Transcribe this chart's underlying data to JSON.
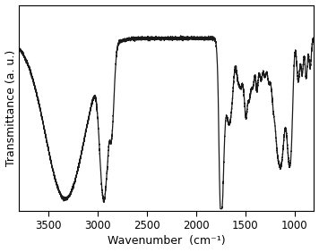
{
  "title": "",
  "xlabel": "Wavenumber  (cm⁻¹)",
  "ylabel": "Transmittance (a. u.)",
  "xlim": [
    3800,
    800
  ],
  "ylim": [
    0,
    1.05
  ],
  "xticks": [
    3500,
    3000,
    2500,
    2000,
    1500,
    1000
  ],
  "background_color": "#ffffff",
  "line_color": "#1a1a1a",
  "line_width": 0.9
}
